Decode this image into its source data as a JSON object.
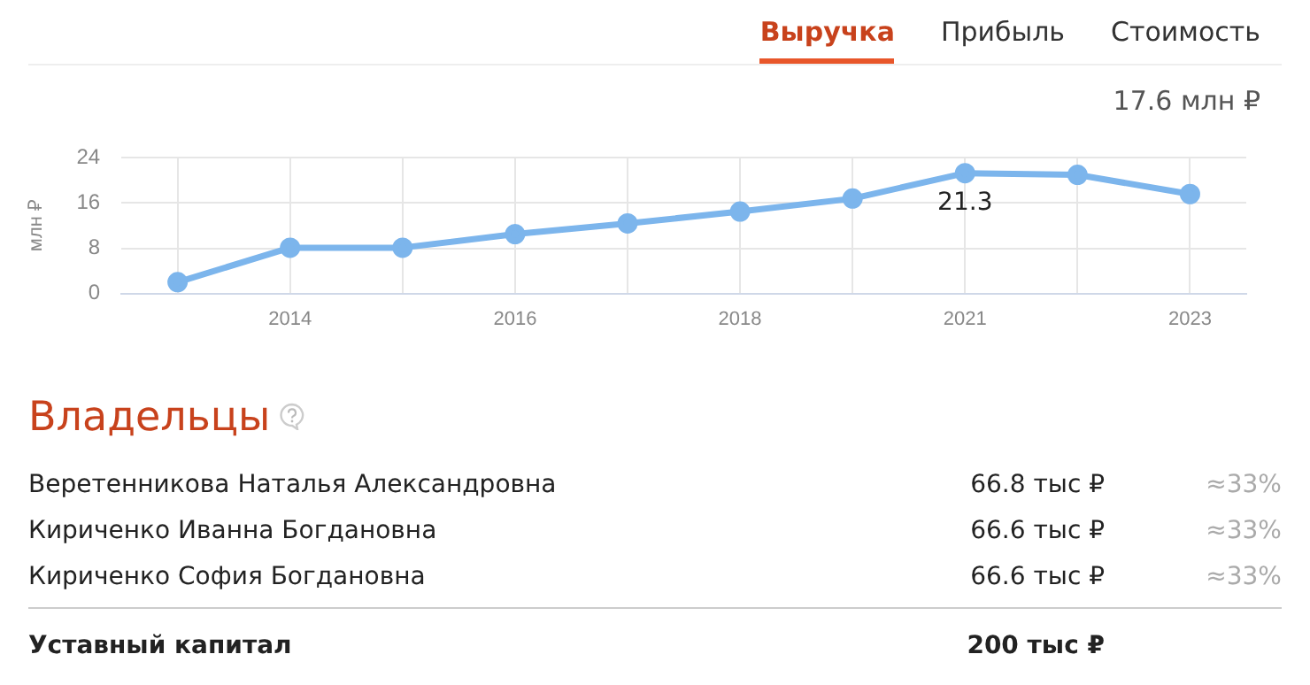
{
  "chart_data": [
    {
      "type": "line",
      "ylabel": "млн ₽",
      "categories": [
        null,
        "2014",
        null,
        "2016",
        null,
        "2018",
        null,
        "2021",
        null,
        "2023"
      ],
      "series": [
        {
          "color": "#7cb5ec",
          "values": [
            2.0,
            8.1,
            8.1,
            10.5,
            12.4,
            14.5,
            16.8,
            21.3,
            21.0,
            17.6
          ]
        }
      ],
      "ylim": [
        0,
        24
      ],
      "yticks": [
        0,
        8,
        16,
        24
      ],
      "grid": true,
      "legend": false,
      "marker": "circle",
      "line_style": "solid",
      "annotations": [
        "Выручка",
        "Прибыль",
        "Стоимость",
        "17.6 млн ₽",
        {
          "text": "21.3",
          "x": "2021",
          "y": 21.3
        }
      ]
    },
    {
      "type": "other",
      "title": "Владельцы",
      "annotations": [
        "Веретенникова Наталья Александровна",
        "66.8 тыс ₽",
        "≈33%",
        "Кириченко Иванна Богдановна",
        "66.6 тыс ₽",
        "≈33%",
        "Кириченко София Богдановна",
        "66.6 тыс ₽",
        "≈33%",
        "Уставный капитал",
        "200 тыс ₽"
      ]
    }
  ]
}
